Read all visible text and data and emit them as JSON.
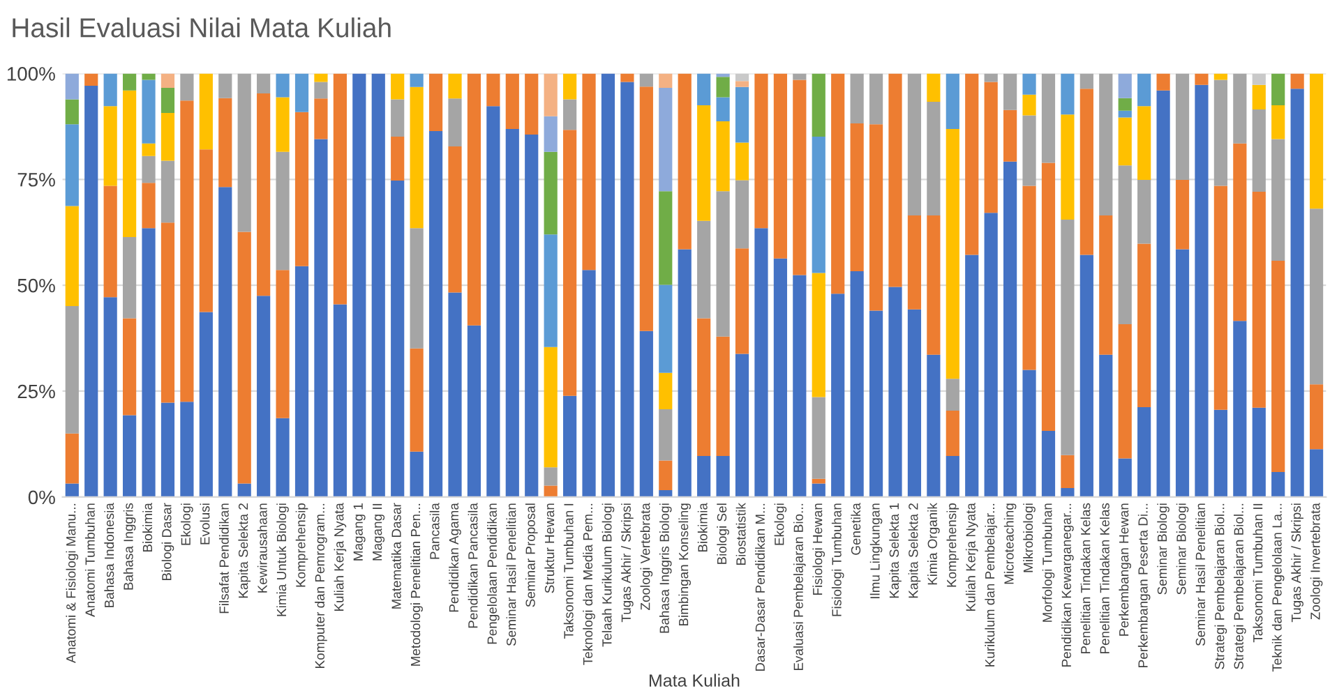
{
  "chart_data": {
    "type": "bar",
    "title": "Hasil Evaluasi Nilai Mata Kuliah",
    "xlabel": "Mata Kuliah",
    "stacked": true,
    "grid": "y",
    "ylim": [
      0,
      100
    ],
    "yticks": [
      {
        "value": 0,
        "label": "0%"
      },
      {
        "value": 25,
        "label": "25%"
      },
      {
        "value": 50,
        "label": "50%"
      },
      {
        "value": 75,
        "label": "75%"
      },
      {
        "value": 100,
        "label": "100%"
      }
    ],
    "categories": [
      "Anatomi & Fisiologi Manu...",
      "Anatomi Tumbuhan",
      "Bahasa Indonesia",
      "Bahasa Inggris",
      "Biokimia",
      "Biologi Dasar",
      "Ekologi",
      "Evolusi",
      "Filsafat Pendidikan",
      "Kapita Selekta 2",
      "Kewirausahaan",
      "Kimia Untuk Biologi",
      "Komprehensip",
      "Komputer dan Pemrogram...",
      "Kuliah Kerja Nyata",
      "Magang 1",
      "Magang II",
      "Matematika Dasar",
      "Metodologi Penelitian Pen...",
      "Pancasila",
      "Pendidikan Agama",
      "Pendidikan Pancasila",
      "Pengelolaan Pendidikan",
      "Seminar Hasil Penelitian",
      "Seminar Proposal",
      "Struktur Hewan",
      "Taksonomi Tumbuhan I",
      "Teknologi dan Media Pem...",
      "Telaah Kurikulum Biologi",
      "Tugas Akhir / Skripsi",
      "Zoologi Vertebrata",
      "Bahasa Inggris Biologi",
      "Bimbingan Konseling",
      "Biokimia",
      "Biologi Sel",
      "Biostatistik",
      "Dasar-Dasar Pendidikan M...",
      "Ekologi",
      "Evaluasi Pembelajaran Bio...",
      "Fisiologi Hewan",
      "Fisiologi Tumbuhan",
      "Genetika",
      "Ilmu Lingkungan",
      "Kapita Selekta 1",
      "Kapita Selekta 2",
      "Kimia Organik",
      "Komprehensip",
      "Kuliah Kerja Nyata",
      "Kurikulum dan Pembelajar...",
      "Microteaching",
      "Mikrobiologi",
      "Morfologi Tumbuhan",
      "Pendidikan Kewarganegar...",
      "Penelitian Tindakan Kelas",
      "Penelitian Tindakan Kelas",
      "Perkembangan Hewan",
      "Perkembangan Peserta Di...",
      "Seminar Biologi",
      "Seminar Biologi",
      "Seminar Hasil Penelitian",
      "Strategi Pembelajaran Biol...",
      "Strategi Pembelajaran Biol...",
      "Taksonomi Tumbuhan II",
      "Teknik dan Pengelolaan La...",
      "Tugas Akhir / Skripsi",
      "Zoologi Invertebrata"
    ],
    "series": [
      {
        "color": "#4472c4",
        "values": [
          3.2,
          97.1,
          47.2,
          19.3,
          63.5,
          22.3,
          22.5,
          43.7,
          73.2,
          3.2,
          47.5,
          18.6,
          54.5,
          84.5,
          45.5,
          100,
          100,
          74.7,
          10.7,
          86.4,
          48.3,
          40.5,
          92.3,
          86.9,
          85.6,
          0,
          23.9,
          53.6,
          100,
          98.0,
          39.2,
          1.6,
          58.5,
          9.7,
          9.7,
          33.8,
          63.5,
          56.3,
          52.4,
          3.2,
          48.0,
          53.3,
          44.0,
          49.6,
          44.3,
          33.6,
          9.7,
          57.2,
          67.1,
          79.2,
          30.0,
          15.6,
          2.1,
          57.2,
          33.6,
          9.1,
          21.2,
          96.0,
          58.5,
          97.3,
          20.6,
          41.6,
          21.1,
          5.9,
          96.4,
          11.3
        ]
      },
      {
        "color": "#ed7d31",
        "values": [
          11.8,
          2.9,
          26.3,
          22.9,
          10.7,
          42.5,
          71.1,
          38.4,
          21.0,
          59.4,
          47.8,
          35.0,
          36.4,
          9.6,
          54.5,
          0,
          0,
          10.4,
          24.4,
          13.6,
          34.5,
          59.5,
          7.7,
          13.1,
          14.4,
          2.7,
          62.8,
          46.4,
          0,
          2.0,
          57.7,
          7.0,
          41.5,
          32.5,
          28.2,
          24.9,
          36.5,
          43.7,
          46.1,
          1.1,
          52.0,
          34.9,
          44.0,
          50.4,
          22.2,
          32.9,
          10.7,
          42.8,
          30.9,
          12.2,
          43.5,
          63.3,
          7.8,
          39.2,
          32.9,
          31.7,
          38.6,
          4.0,
          16.4,
          2.7,
          52.9,
          41.9,
          51.0,
          49.9,
          3.6,
          15.3
        ]
      },
      {
        "color": "#a5a5a5",
        "values": [
          30.1,
          0,
          0,
          19.2,
          6.3,
          14.6,
          6.4,
          0,
          5.8,
          37.4,
          4.7,
          27.9,
          0,
          3.9,
          0,
          0,
          0,
          8.8,
          28.4,
          0,
          11.3,
          0,
          0,
          0,
          0,
          4.3,
          7.2,
          0,
          0,
          0,
          3.1,
          12.1,
          0,
          23.0,
          34.3,
          16.1,
          0,
          0,
          1.5,
          19.3,
          0,
          11.8,
          12.0,
          0,
          33.5,
          26.8,
          7.5,
          0,
          2.0,
          8.6,
          16.6,
          21.1,
          55.6,
          3.6,
          33.5,
          37.5,
          15.1,
          0,
          25.1,
          0,
          25.0,
          16.5,
          19.4,
          28.7,
          0,
          41.5
        ]
      },
      {
        "color": "#ffc000",
        "values": [
          23.6,
          0,
          18.8,
          34.6,
          3.0,
          11.3,
          0,
          17.9,
          0,
          0,
          0,
          12.9,
          0,
          2.0,
          0,
          0,
          0,
          6.1,
          33.3,
          0,
          5.9,
          0,
          0,
          0,
          0,
          28.4,
          6.1,
          0,
          0,
          0,
          0,
          8.6,
          0,
          27.3,
          16.5,
          8.9,
          0,
          0,
          0,
          29.3,
          0,
          0,
          0,
          0,
          0,
          6.7,
          59.0,
          0,
          0,
          0,
          4.9,
          0,
          24.8,
          0,
          0,
          11.3,
          17.4,
          0,
          0,
          0,
          1.5,
          0,
          5.8,
          8.0,
          0,
          31.9
        ]
      },
      {
        "color": "#5b9bd5",
        "values": [
          19.3,
          0,
          7.7,
          0,
          15.0,
          0,
          0,
          0,
          0,
          0,
          0,
          5.6,
          9.1,
          0,
          0,
          0,
          0,
          0,
          3.2,
          0,
          0,
          0,
          0,
          0,
          0,
          26.6,
          0,
          0,
          0,
          0,
          0,
          20.8,
          0,
          7.5,
          5.7,
          13.1,
          0,
          0,
          0,
          32.2,
          0,
          0,
          0,
          0,
          0,
          0,
          13.1,
          0,
          0,
          0,
          5.0,
          0,
          9.7,
          0,
          0,
          1.6,
          7.7,
          0,
          0,
          0,
          0,
          0,
          0,
          0,
          0,
          0
        ]
      },
      {
        "color": "#70ad47",
        "values": [
          5.9,
          0,
          0,
          4.0,
          1.5,
          5.9,
          0,
          0,
          0,
          0,
          0,
          0,
          0,
          0,
          0,
          0,
          0,
          0,
          0,
          0,
          0,
          0,
          0,
          0,
          0,
          19.5,
          0,
          0,
          0,
          0,
          0,
          22.1,
          0,
          0,
          4.8,
          0,
          0,
          0,
          0,
          14.9,
          0,
          0,
          0,
          0,
          0,
          0,
          0,
          0,
          0,
          0,
          0,
          0,
          0,
          0,
          0,
          3.0,
          0,
          0,
          0,
          0,
          0,
          0,
          0,
          7.5,
          0,
          0
        ]
      },
      {
        "color": "#8eaadb",
        "values": [
          6.1,
          0,
          0,
          0,
          0,
          0,
          0,
          0,
          0,
          0,
          0,
          0,
          0,
          0,
          0,
          0,
          0,
          0,
          0,
          0,
          0,
          0,
          0,
          0,
          0,
          8.4,
          0,
          0,
          0,
          0,
          0,
          24.4,
          0,
          0,
          0.8,
          0,
          0,
          0,
          0,
          0,
          0,
          0,
          0,
          0,
          0,
          0,
          0,
          0,
          0,
          0,
          0,
          0,
          0,
          0,
          0,
          5.8,
          0,
          0,
          0,
          0,
          0,
          0,
          0,
          0,
          0,
          0
        ]
      },
      {
        "color": "#f4b183",
        "values": [
          0,
          0,
          0,
          0,
          0,
          3.4,
          0,
          0,
          0,
          0,
          0,
          0,
          0,
          0,
          0,
          0,
          0,
          0,
          0,
          0,
          0,
          0,
          0,
          0,
          0,
          10.1,
          0,
          0,
          0,
          0,
          0,
          3.4,
          0,
          0,
          0,
          1.4,
          0,
          0,
          0,
          0,
          0,
          0,
          0,
          0,
          0,
          0,
          0,
          0,
          0,
          0,
          0,
          0,
          0,
          0,
          0,
          0,
          0,
          0,
          0,
          0,
          0,
          0,
          0,
          0,
          0,
          0
        ]
      },
      {
        "color": "#c9c9c9",
        "values": [
          0,
          0,
          0,
          0,
          0,
          0,
          0,
          0,
          0,
          0,
          0,
          0,
          0,
          0,
          0,
          0,
          0,
          0,
          0,
          0,
          0,
          0,
          0,
          0,
          0,
          0,
          0,
          0,
          0,
          0,
          0,
          0,
          0,
          0,
          0,
          1.8,
          0,
          0,
          0,
          0,
          0,
          0,
          0,
          0,
          0,
          0,
          0,
          0,
          0,
          0,
          0,
          0,
          0,
          0,
          0,
          0,
          0,
          0,
          0,
          0,
          0,
          0,
          2.7,
          0,
          0,
          0
        ]
      }
    ]
  }
}
